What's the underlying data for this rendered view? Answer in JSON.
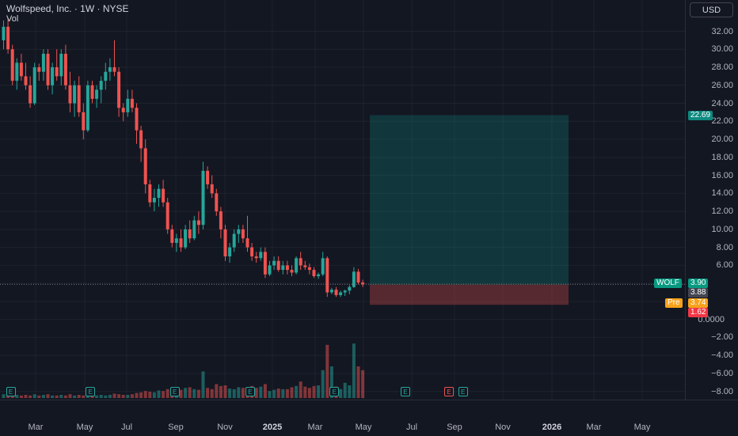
{
  "legend": {
    "title": "Wolfspeed, Inc. · 1W · NYSE",
    "vol_label": "Vol"
  },
  "currency": "USD",
  "colors": {
    "up": "#26a69a",
    "down": "#ef5350",
    "background": "#131722",
    "grid": "#2a2e39",
    "target": "#0e8a80",
    "stop": "#ef5350"
  },
  "price_ticks": [
    "32.00",
    "30.00",
    "28.00",
    "26.00",
    "24.00",
    "22.00",
    "20.00",
    "18.00",
    "16.00",
    "14.00",
    "12.00",
    "10.00",
    "8.00",
    "6.00",
    "0.0000",
    "−2.00",
    "−4.00",
    "−6.00",
    "−8.00"
  ],
  "time_labels": [
    "Mar",
    "May",
    "Jul",
    "Sep",
    "Nov",
    "2025",
    "Mar",
    "May",
    "Jul",
    "Sep",
    "Nov",
    "2026",
    "Mar",
    "May"
  ],
  "price_tags": {
    "target": "22.69",
    "symbol": "WOLF",
    "last": "3.90",
    "entry": "3.88",
    "pre_label": "Pre",
    "pre_value": "3.74",
    "stop": "1.62"
  },
  "earnings_marker": "E",
  "chart_data": {
    "type": "candlestick",
    "title": "Wolfspeed, Inc. · 1W · NYSE",
    "ylim": [
      -9,
      33
    ],
    "last_price": 3.9,
    "position": {
      "target": 22.69,
      "entry": 3.88,
      "stop": 1.62
    },
    "candles": [
      [
        31.0,
        33.2,
        30.0,
        32.5
      ],
      [
        32.5,
        33.5,
        29.5,
        30.0
      ],
      [
        30.0,
        30.5,
        26.0,
        26.5
      ],
      [
        26.5,
        29.0,
        25.5,
        28.5
      ],
      [
        28.5,
        29.5,
        26.5,
        27.0
      ],
      [
        27.0,
        28.5,
        25.5,
        26.0
      ],
      [
        26.0,
        27.0,
        23.5,
        24.0
      ],
      [
        24.0,
        28.5,
        23.8,
        28.0
      ],
      [
        28.0,
        28.4,
        26.5,
        27.5
      ],
      [
        27.5,
        30.0,
        26.5,
        29.5
      ],
      [
        29.5,
        30.0,
        25.5,
        26.0
      ],
      [
        26.0,
        28.5,
        25.0,
        28.0
      ],
      [
        28.0,
        30.0,
        26.5,
        27.0
      ],
      [
        27.0,
        30.0,
        26.0,
        29.5
      ],
      [
        29.5,
        30.5,
        25.5,
        26.0
      ],
      [
        26.0,
        27.5,
        23.0,
        24.0
      ],
      [
        24.0,
        26.5,
        22.5,
        26.0
      ],
      [
        26.0,
        27.0,
        22.5,
        23.0
      ],
      [
        23.0,
        24.0,
        20.0,
        21.0
      ],
      [
        21.0,
        26.5,
        20.8,
        26.0
      ],
      [
        26.0,
        26.5,
        24.0,
        24.5
      ],
      [
        24.5,
        26.0,
        23.5,
        25.5
      ],
      [
        25.5,
        27.0,
        24.0,
        26.5
      ],
      [
        26.5,
        28.5,
        25.5,
        27.5
      ],
      [
        27.5,
        29.0,
        26.5,
        28.0
      ],
      [
        28.0,
        31.0,
        27.0,
        27.5
      ],
      [
        27.5,
        28.0,
        22.5,
        23.5
      ],
      [
        23.5,
        24.0,
        22.0,
        23.0
      ],
      [
        23.0,
        25.5,
        22.5,
        24.5
      ],
      [
        24.5,
        25.5,
        23.0,
        23.5
      ],
      [
        23.5,
        24.0,
        19.5,
        21.0
      ],
      [
        21.0,
        21.5,
        17.5,
        19.0
      ],
      [
        19.0,
        20.0,
        14.0,
        15.0
      ],
      [
        15.0,
        15.5,
        12.5,
        13.0
      ],
      [
        13.0,
        14.5,
        12.0,
        13.5
      ],
      [
        13.5,
        15.0,
        12.5,
        14.5
      ],
      [
        14.5,
        15.5,
        12.5,
        13.0
      ],
      [
        13.0,
        13.5,
        9.5,
        10.0
      ],
      [
        10.0,
        10.5,
        8.0,
        8.5
      ],
      [
        8.5,
        9.5,
        7.5,
        9.0
      ],
      [
        9.0,
        10.0,
        7.5,
        8.0
      ],
      [
        8.0,
        10.5,
        7.8,
        10.0
      ],
      [
        10.0,
        11.0,
        8.5,
        9.0
      ],
      [
        9.0,
        11.5,
        8.8,
        11.0
      ],
      [
        11.0,
        12.0,
        9.5,
        10.5
      ],
      [
        10.5,
        17.5,
        10.0,
        16.5
      ],
      [
        16.5,
        17.0,
        14.5,
        15.0
      ],
      [
        15.0,
        16.0,
        13.5,
        14.0
      ],
      [
        14.0,
        14.5,
        11.5,
        12.0
      ],
      [
        12.0,
        12.5,
        9.0,
        10.0
      ],
      [
        10.0,
        10.5,
        6.5,
        7.0
      ],
      [
        7.0,
        8.5,
        6.3,
        8.0
      ],
      [
        8.0,
        10.0,
        7.5,
        9.5
      ],
      [
        9.5,
        10.5,
        8.5,
        10.0
      ],
      [
        10.0,
        10.5,
        8.5,
        9.0
      ],
      [
        9.0,
        11.5,
        7.5,
        8.0
      ],
      [
        8.0,
        8.5,
        6.5,
        7.0
      ],
      [
        7.0,
        7.5,
        6.3,
        6.8
      ],
      [
        6.8,
        8.0,
        6.5,
        7.5
      ],
      [
        7.5,
        8.0,
        4.6,
        5.0
      ],
      [
        5.0,
        6.5,
        4.8,
        6.0
      ],
      [
        6.0,
        7.0,
        5.5,
        6.5
      ],
      [
        6.5,
        7.0,
        5.3,
        5.5
      ],
      [
        5.5,
        6.5,
        5.0,
        6.0
      ],
      [
        6.0,
        6.5,
        5.0,
        5.5
      ],
      [
        5.5,
        6.0,
        4.8,
        5.2
      ],
      [
        5.2,
        7.0,
        5.0,
        6.8
      ],
      [
        6.8,
        7.5,
        5.5,
        6.0
      ],
      [
        6.0,
        6.5,
        5.5,
        5.8
      ],
      [
        5.8,
        6.2,
        5.0,
        5.5
      ],
      [
        5.5,
        5.8,
        4.6,
        4.8
      ],
      [
        4.8,
        5.2,
        4.5,
        5.0
      ],
      [
        5.0,
        7.5,
        4.8,
        6.8
      ],
      [
        6.8,
        7.0,
        2.5,
        3.0
      ],
      [
        3.0,
        3.5,
        2.8,
        3.3
      ],
      [
        3.3,
        3.6,
        2.5,
        2.7
      ],
      [
        2.7,
        3.2,
        2.5,
        3.0
      ],
      [
        3.0,
        3.3,
        2.6,
        3.2
      ],
      [
        3.2,
        3.8,
        2.8,
        3.6
      ],
      [
        3.6,
        5.8,
        3.5,
        5.3
      ],
      [
        5.3,
        5.6,
        3.9,
        4.1
      ],
      [
        4.1,
        4.4,
        3.6,
        3.9
      ]
    ],
    "volume_levels": [
      0.3,
      0.25,
      0.25,
      0.25,
      0.2,
      0.25,
      0.2,
      0.3,
      0.2,
      0.25,
      0.3,
      0.2,
      0.2,
      0.25,
      0.2,
      0.3,
      0.2,
      0.25,
      0.2,
      0.3,
      0.25,
      0.2,
      0.25,
      0.2,
      0.25,
      0.35,
      0.3,
      0.25,
      0.25,
      0.3,
      0.4,
      0.45,
      0.55,
      0.5,
      0.45,
      0.6,
      0.55,
      0.7,
      0.7,
      0.8,
      0.65,
      0.8,
      0.85,
      0.7,
      0.65,
      2.1,
      0.8,
      0.7,
      1.1,
      0.95,
      1.0,
      0.75,
      0.7,
      0.85,
      0.8,
      0.7,
      0.95,
      0.8,
      0.9,
      1.1,
      0.55,
      0.65,
      0.75,
      0.7,
      0.7,
      0.85,
      0.95,
      1.3,
      0.9,
      0.8,
      0.95,
      1.0,
      2.2,
      4.2,
      2.5,
      0.9,
      0.7,
      1.2,
      1.0,
      4.3,
      2.5,
      2.2
    ],
    "earnings_weeks": [
      0,
      18,
      37,
      54,
      73,
      89,
      102
    ]
  }
}
